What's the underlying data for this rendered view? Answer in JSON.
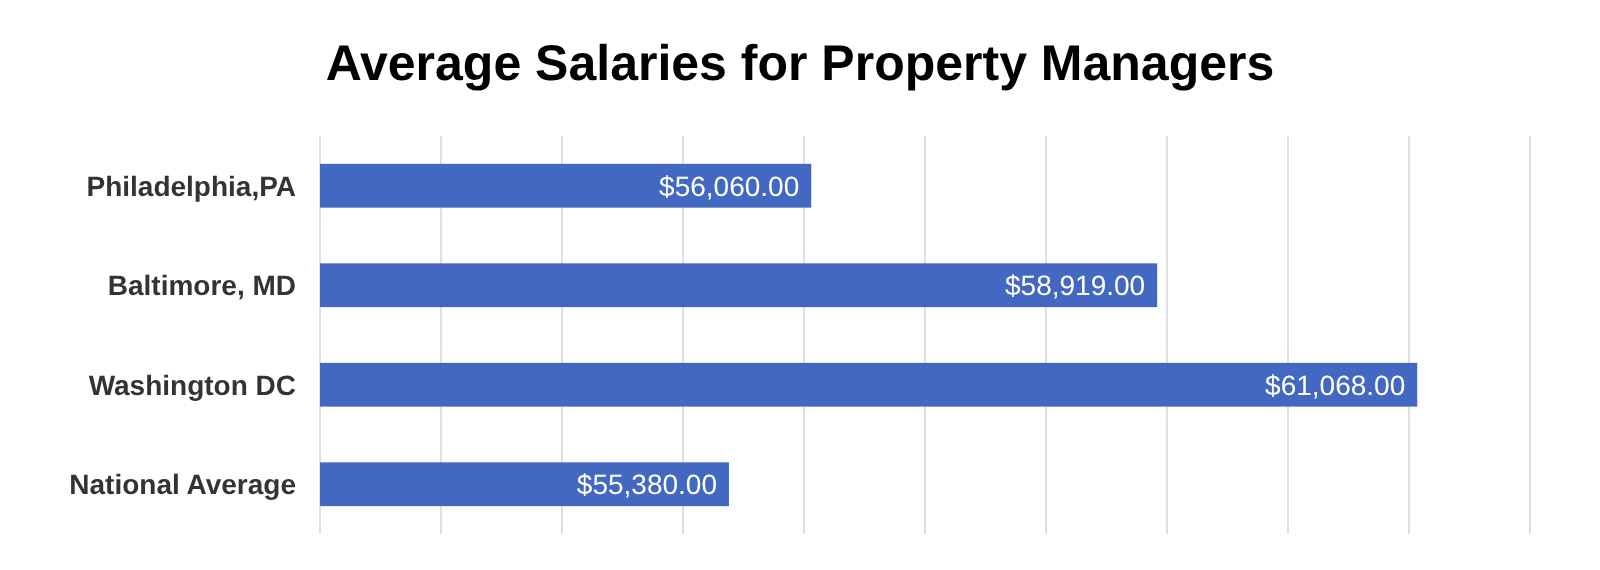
{
  "chart_data": {
    "type": "bar",
    "orientation": "horizontal",
    "title": "Average Salaries for Property Managers",
    "categories": [
      "Philadelphia,PA",
      "Baltimore, MD",
      "Washington DC",
      "National Average"
    ],
    "values": [
      56060,
      58919,
      61068,
      55380
    ],
    "value_labels": [
      "$56,060.00",
      "$58,919.00",
      "$61,068.00",
      "$55,380.00"
    ],
    "color": "#4268c2",
    "xlim": [
      52000,
      62000
    ],
    "xticks": [
      {
        "value": 52000,
        "label": null
      },
      {
        "value": 53000,
        "label": null
      },
      {
        "value": 54000,
        "label": null
      },
      {
        "value": 55000,
        "label": null
      },
      {
        "value": 56000,
        "label": null
      },
      {
        "value": 57000,
        "label": null
      },
      {
        "value": 58000,
        "label": null
      },
      {
        "value": 59000,
        "label": null
      },
      {
        "value": 60000,
        "label": null
      },
      {
        "value": 61000,
        "label": null
      },
      {
        "value": 62000,
        "label": null
      }
    ],
    "grid": "x",
    "tick_labels": "y"
  }
}
